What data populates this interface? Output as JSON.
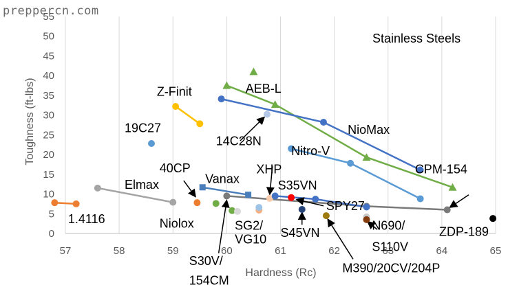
{
  "watermark": "preppercn.com",
  "chart_data": {
    "type": "scatter",
    "subtitle": "Stainless Steels",
    "xlabel": "Hardness (Rc)",
    "ylabel": "Toughness (ft-lbs)",
    "xlim": [
      57,
      65
    ],
    "ylim": [
      0,
      55
    ],
    "xticks": [
      "57",
      "58",
      "59",
      "60",
      "61",
      "62",
      "63",
      "64",
      "65"
    ],
    "yticks": [
      "0",
      "5",
      "10",
      "15",
      "20",
      "25",
      "30",
      "35",
      "40",
      "45",
      "50",
      "55"
    ],
    "grid": "vertical-major",
    "series": [
      {
        "name": "1.4116",
        "color": "#ed7d31",
        "marker": "circle",
        "points": [
          [
            56.8,
            7.8
          ],
          [
            57.2,
            7.5
          ]
        ]
      },
      {
        "name": "Elmax",
        "color": "#a5a5a5",
        "marker": "circle",
        "points": [
          [
            57.6,
            11.5
          ],
          [
            59.0,
            7.9
          ]
        ]
      },
      {
        "name": "19C27",
        "color": "#5b9bd5",
        "marker": "circle",
        "points": [
          [
            58.6,
            22.8
          ]
        ]
      },
      {
        "name": "Z-Finit",
        "color": "#ffc000",
        "marker": "circle",
        "points": [
          [
            59.05,
            32.2
          ],
          [
            59.5,
            27.8
          ]
        ]
      },
      {
        "name": "40CP",
        "color": "#ed7d31",
        "marker": "circle",
        "points": [
          [
            59.45,
            7.8
          ]
        ]
      },
      {
        "name": "Niolox",
        "color": "#70ad47",
        "marker": "circle",
        "points": [
          [
            59.8,
            7.6
          ]
        ]
      },
      {
        "name": "Vanax",
        "color": "#4a7ebb",
        "marker": "square",
        "points": [
          [
            59.55,
            11.7
          ],
          [
            60.4,
            9.8
          ]
        ]
      },
      {
        "name": "S30V/154CM",
        "color": "#7a7a7a",
        "marker": "circle",
        "points": [
          [
            60.0,
            9.5
          ],
          [
            62.6,
            6.9
          ],
          [
            64.1,
            6.0
          ]
        ]
      },
      {
        "name": "S30V/154CM point 2",
        "color": "#70ad47",
        "marker": "circle",
        "points": [
          [
            60.1,
            5.8
          ]
        ]
      },
      {
        "name": "S30V/154CM point 3",
        "color": "#d9d9d9",
        "marker": "circle",
        "points": [
          [
            60.2,
            5.6
          ]
        ]
      },
      {
        "name": "AEB-L",
        "color": "#70ad47",
        "marker": "triangle",
        "points": [
          [
            60.0,
            37.5
          ],
          [
            60.9,
            32.7
          ],
          [
            62.6,
            19.3
          ],
          [
            64.2,
            11.7
          ]
        ]
      },
      {
        "name": "AEB-L max",
        "color": "#70ad47",
        "marker": "triangle",
        "points": [
          [
            60.5,
            41.0
          ]
        ]
      },
      {
        "name": "NioMax",
        "color": "#4472c4",
        "marker": "circle",
        "points": [
          [
            59.9,
            34.1
          ],
          [
            61.8,
            28.2
          ],
          [
            63.6,
            16.1
          ]
        ]
      },
      {
        "name": "14C28N",
        "color": "#b4c7e7",
        "marker": "circle",
        "points": [
          [
            60.75,
            30.2
          ]
        ]
      },
      {
        "name": "Nitro-V",
        "color": "#5b9bd5",
        "marker": "circle",
        "points": [
          [
            61.2,
            21.5
          ],
          [
            62.3,
            17.8
          ],
          [
            63.6,
            8.8
          ]
        ]
      },
      {
        "name": "SG2/VG10",
        "color": "#f4b183",
        "marker": "circle",
        "points": [
          [
            60.6,
            5.9
          ]
        ]
      },
      {
        "name": "SG2/VG10 point 2",
        "color": "#9dc3e6",
        "marker": "circle",
        "points": [
          [
            60.6,
            6.6
          ]
        ]
      },
      {
        "name": "XHP",
        "color": "#f8cbad",
        "marker": "circle",
        "points": [
          [
            60.8,
            8.9
          ]
        ]
      },
      {
        "name": "S35VN",
        "color": "#ff0000",
        "marker": "circle",
        "points": [
          [
            61.2,
            9.1
          ]
        ]
      },
      {
        "name": "SPY27",
        "color": "#4472c4",
        "marker": "circle",
        "points": [
          [
            60.9,
            9.5
          ],
          [
            61.65,
            8.7
          ],
          [
            62.6,
            6.7
          ]
        ]
      },
      {
        "name": "S45VN",
        "color": "#264478",
        "marker": "circle",
        "points": [
          [
            61.4,
            6.1
          ]
        ]
      },
      {
        "name": "M390/20CV/204P",
        "color": "#9e7c0c",
        "marker": "circle",
        "points": [
          [
            61.85,
            4.5
          ]
        ]
      },
      {
        "name": "N690/S110V",
        "color": "#c9c9c9",
        "marker": "circle",
        "points": [
          [
            62.6,
            4.2
          ]
        ]
      },
      {
        "name": "N690/S110V point 2",
        "color": "#843c0c",
        "marker": "circle",
        "points": [
          [
            62.6,
            3.5
          ]
        ]
      },
      {
        "name": "ZDP-189",
        "color": "#000000",
        "marker": "circle",
        "points": [
          [
            64.95,
            3.8
          ]
        ]
      }
    ],
    "annotations": [
      {
        "text": "1.4116",
        "x": 57.05,
        "y": 2.6,
        "anchor": "start"
      },
      {
        "text": "Elmax",
        "x": 58.1,
        "y": 11.3,
        "anchor": "start"
      },
      {
        "text": "19C27",
        "x": 58.1,
        "y": 25.7,
        "anchor": "start"
      },
      {
        "text": "Z-Finit",
        "x": 58.7,
        "y": 34.9,
        "anchor": "start"
      },
      {
        "text": "40CP",
        "x": 58.75,
        "y": 15.5,
        "anchor": "start"
      },
      {
        "text": "Niolox",
        "x": 58.75,
        "y": 1.5,
        "anchor": "start"
      },
      {
        "text": "Vanax",
        "x": 59.6,
        "y": 12.8,
        "anchor": "start"
      },
      {
        "text": "S30V/",
        "x": 59.3,
        "y": -8.0,
        "anchor": "start"
      },
      {
        "text": "154CM",
        "x": 59.3,
        "y": -13.0,
        "anchor": "start"
      },
      {
        "text": "AEB-L",
        "x": 60.35,
        "y": 35.7,
        "anchor": "start"
      },
      {
        "text": "NioMax",
        "x": 62.25,
        "y": 25.2,
        "anchor": "start"
      },
      {
        "text": "14C28N",
        "x": 59.8,
        "y": 22.4,
        "anchor": "start"
      },
      {
        "text": "Nitro-V",
        "x": 61.2,
        "y": 19.8,
        "anchor": "start"
      },
      {
        "text": "XHP",
        "x": 60.55,
        "y": 15.2,
        "anchor": "start"
      },
      {
        "text": "S35VN",
        "x": 60.95,
        "y": 11.1,
        "anchor": "start"
      },
      {
        "text": "SPY27",
        "x": 61.85,
        "y": 5.9,
        "anchor": "start"
      },
      {
        "text": "SG2/",
        "x": 60.15,
        "y": 1.0,
        "anchor": "start"
      },
      {
        "text": "VG10",
        "x": 60.15,
        "y": -2.5,
        "anchor": "start"
      },
      {
        "text": "S45VN",
        "x": 61.0,
        "y": -0.9,
        "anchor": "start"
      },
      {
        "text": "N690/",
        "x": 62.7,
        "y": 1.0,
        "anchor": "start"
      },
      {
        "text": "S110V",
        "x": 62.7,
        "y": -4.4,
        "anchor": "start"
      },
      {
        "text": "ZDP-189",
        "x": 63.95,
        "y": -0.6,
        "anchor": "start"
      },
      {
        "text": "CPM-154",
        "x": 63.5,
        "y": 15.2,
        "anchor": "start"
      },
      {
        "text": "M390/20CV/204P",
        "x": 62.15,
        "y": -9.8,
        "anchor": "start"
      }
    ],
    "arrows": [
      {
        "from": [
          59.2,
          13.4
        ],
        "to": [
          59.42,
          9.3
        ]
      },
      {
        "from": [
          60.85,
          17.0
        ],
        "to": [
          60.8,
          9.9
        ]
      },
      {
        "from": [
          60.25,
          23.5
        ],
        "to": [
          60.7,
          29.5
        ]
      },
      {
        "from": [
          61.8,
          7.0
        ],
        "to": [
          61.3,
          8.6
        ]
      },
      {
        "from": [
          61.4,
          2.2
        ],
        "to": [
          61.4,
          5.3
        ]
      },
      {
        "from": [
          62.8,
          1.0
        ],
        "to": [
          62.62,
          3.0
        ]
      },
      {
        "from": [
          62.35,
          -6.5
        ],
        "to": [
          61.88,
          3.6
        ]
      },
      {
        "from": [
          64.5,
          9.8
        ],
        "to": [
          64.15,
          6.6
        ]
      },
      {
        "from": [
          59.85,
          -5.0
        ],
        "to": [
          60.0,
          8.4
        ]
      }
    ]
  }
}
